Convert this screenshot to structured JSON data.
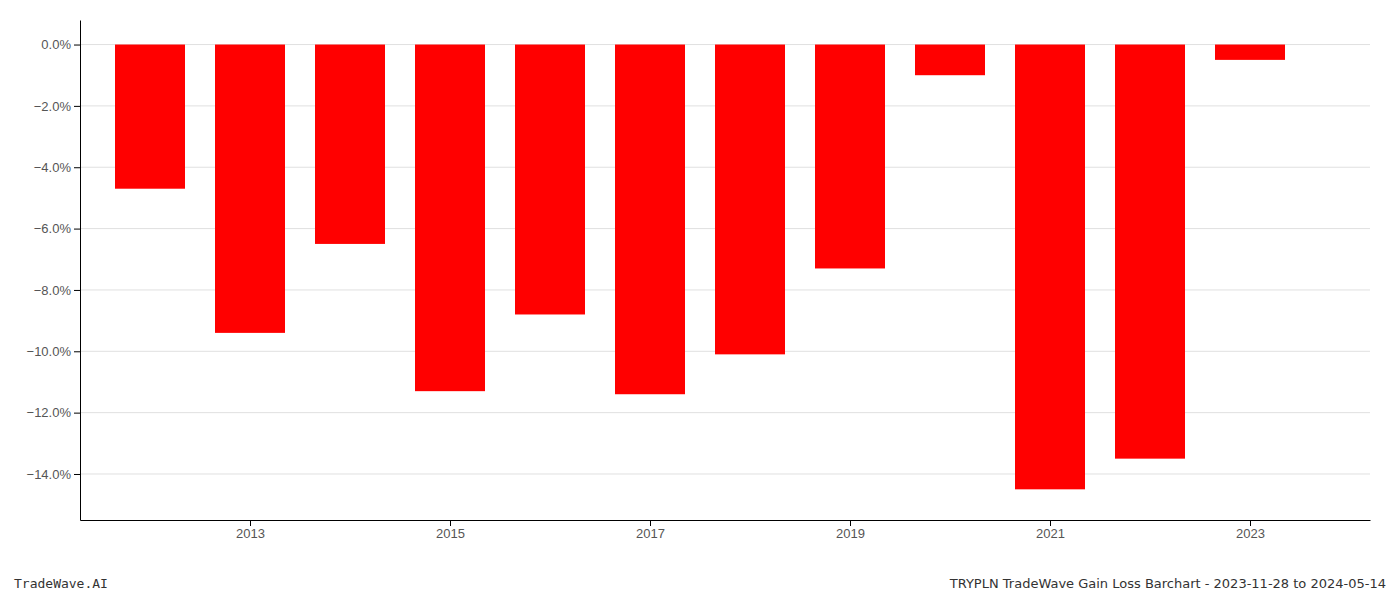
{
  "chart_data": {
    "type": "bar",
    "x": [
      2012,
      2013,
      2014,
      2015,
      2016,
      2017,
      2018,
      2019,
      2020,
      2021,
      2022,
      2023
    ],
    "values": [
      -4.7,
      -9.4,
      -6.5,
      -11.3,
      -8.8,
      -11.4,
      -10.1,
      -7.3,
      -1.0,
      -14.5,
      -13.5,
      -0.5
    ],
    "color": "#ff0000",
    "xlim": [
      2011.3,
      2024.2
    ],
    "xticks": [
      2013,
      2015,
      2017,
      2019,
      2021,
      2023
    ],
    "ylim": [
      -15.5,
      0.8
    ],
    "yticks": [
      {
        "value": 0.0,
        "label": "0.0%"
      },
      {
        "value": -2.0,
        "label": "−2.0%"
      },
      {
        "value": -4.0,
        "label": "−4.0%"
      },
      {
        "value": -6.0,
        "label": "−6.0%"
      },
      {
        "value": -8.0,
        "label": "−8.0%"
      },
      {
        "value": -10.0,
        "label": "−10.0%"
      },
      {
        "value": -12.0,
        "label": "−12.0%"
      },
      {
        "value": -14.0,
        "label": "−14.0%"
      }
    ],
    "grid": true,
    "annotations": [
      "TradeWave.AI",
      "TRYPLN TradeWave Gain Loss Barchart - 2023-11-28 to 2024-05-14"
    ]
  }
}
